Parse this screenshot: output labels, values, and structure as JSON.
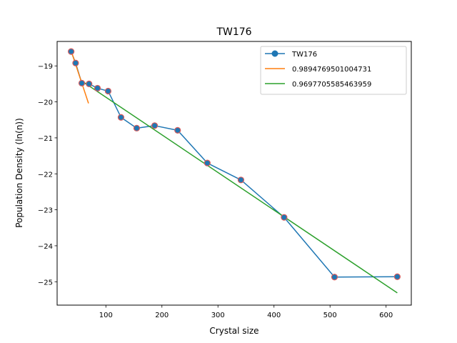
{
  "chart_data": {
    "type": "line",
    "title": "TW176",
    "xlabel": "Crystal size",
    "ylabel": "Population Density (ln(n))",
    "xlim": [
      13,
      645
    ],
    "ylim": [
      -25.65,
      -18.32
    ],
    "xticks": [
      100,
      200,
      300,
      400,
      500,
      600
    ],
    "yticks": [
      -25,
      -24,
      -23,
      -22,
      -21,
      -20,
      -19
    ],
    "grid": false,
    "legend_position": "top-right",
    "series": [
      {
        "name": "TW176",
        "style": "line+markers",
        "color": "#1f77b4",
        "marker_color": "#1f77b4",
        "marker_edge": "#d65b5b",
        "x": [
          38,
          46,
          57,
          70,
          85,
          104,
          127,
          155,
          187,
          228,
          281,
          341,
          418,
          508,
          620
        ],
        "y": [
          -18.6,
          -18.92,
          -19.48,
          -19.5,
          -19.62,
          -19.7,
          -20.43,
          -20.73,
          -20.66,
          -20.79,
          -21.7,
          -22.17,
          -23.21,
          -24.87,
          -24.86
        ]
      },
      {
        "name": "0.9894769501004731",
        "style": "line",
        "color": "#ff7f0e",
        "x": [
          38,
          69
        ],
        "y": [
          -18.58,
          -20.04
        ]
      },
      {
        "name": "0.9697705585463959",
        "style": "line",
        "color": "#2ca02c",
        "x": [
          57,
          620
        ],
        "y": [
          -19.42,
          -25.31
        ]
      }
    ]
  }
}
